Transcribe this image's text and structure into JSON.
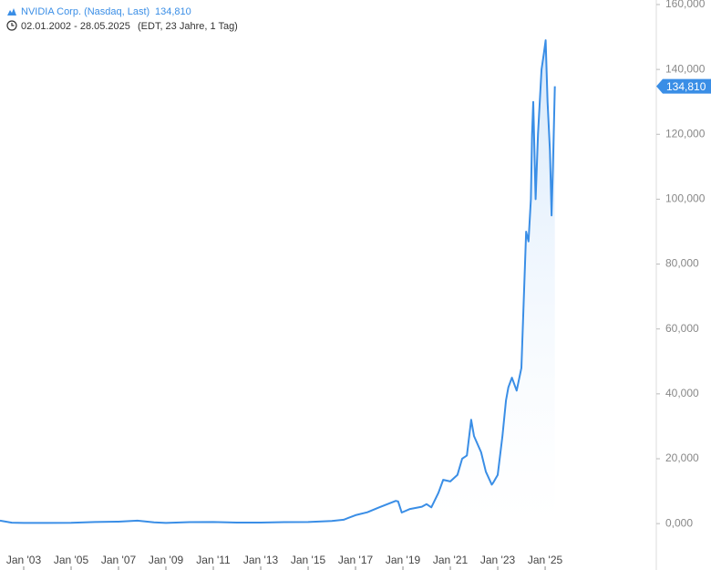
{
  "chart_data": {
    "type": "line",
    "title": "NVIDIA Corp. (Nasdaq, Last)",
    "date_range": "02.01.2002 - 28.05.2025",
    "subtitle": "(EDT, 23 Jahre, 1 Tag)",
    "last_price": {
      "value": 134.81,
      "label": "134,810"
    },
    "xlim": [
      2002,
      2029.69
    ],
    "ylim": [
      -14.3,
      161.4
    ],
    "xticks": [
      {
        "value": 2003,
        "label": "Jan '03"
      },
      {
        "value": 2005,
        "label": "Jan '05"
      },
      {
        "value": 2007,
        "label": "Jan '07"
      },
      {
        "value": 2009,
        "label": "Jan '09"
      },
      {
        "value": 2011,
        "label": "Jan '11"
      },
      {
        "value": 2013,
        "label": "Jan '13"
      },
      {
        "value": 2015,
        "label": "Jan '15"
      },
      {
        "value": 2017,
        "label": "Jan '17"
      },
      {
        "value": 2019,
        "label": "Jan '19"
      },
      {
        "value": 2021,
        "label": "Jan '21"
      },
      {
        "value": 2023,
        "label": "Jan '23"
      },
      {
        "value": 2025,
        "label": "Jan '25"
      }
    ],
    "yticks": [
      {
        "value": 0,
        "label": "0,000"
      },
      {
        "value": 20,
        "label": "20,000"
      },
      {
        "value": 40,
        "label": "40,000"
      },
      {
        "value": 60,
        "label": "60,000"
      },
      {
        "value": 80,
        "label": "80,000"
      },
      {
        "value": 100,
        "label": "100,000"
      },
      {
        "value": 120,
        "label": "120,000"
      },
      {
        "value": 140,
        "label": "140,000"
      },
      {
        "value": 160,
        "label": "160,000"
      }
    ],
    "series": [
      {
        "name": "NVIDIA Corp. (Nasdaq, Last)",
        "color": "#3a8ee6",
        "x": [
          2002.0,
          2002.5,
          2003,
          2004,
          2005,
          2006,
          2007,
          2007.8,
          2008.5,
          2009,
          2010,
          2011,
          2012,
          2013,
          2014,
          2015,
          2016,
          2016.5,
          2017,
          2017.5,
          2018,
          2018.7,
          2018.8,
          2018.95,
          2019.3,
          2019.8,
          2020.0,
          2020.2,
          2020.5,
          2020.7,
          2021.0,
          2021.3,
          2021.5,
          2021.7,
          2021.88,
          2022.0,
          2022.3,
          2022.5,
          2022.75,
          2022.8,
          2023.0,
          2023.2,
          2023.35,
          2023.45,
          2023.6,
          2023.8,
          2024.0,
          2024.2,
          2024.3,
          2024.4,
          2024.45,
          2024.5,
          2024.6,
          2024.7,
          2024.85,
          2024.95,
          2025.02,
          2025.1,
          2025.2,
          2025.27,
          2025.33,
          2025.41
        ],
        "values": [
          0.9,
          0.3,
          0.2,
          0.2,
          0.25,
          0.5,
          0.6,
          0.9,
          0.4,
          0.2,
          0.45,
          0.5,
          0.33,
          0.32,
          0.45,
          0.5,
          0.8,
          1.2,
          2.6,
          3.5,
          5,
          7,
          6.8,
          3.4,
          4.5,
          5.2,
          6,
          5,
          9.5,
          13.5,
          13,
          15,
          20,
          21,
          32,
          27,
          22,
          16,
          12,
          12.5,
          15,
          27,
          38,
          42,
          45,
          41,
          48,
          90,
          87,
          100,
          120,
          130,
          100,
          120,
          140,
          145,
          149,
          130,
          115,
          95,
          110,
          134.81
        ]
      }
    ]
  }
}
